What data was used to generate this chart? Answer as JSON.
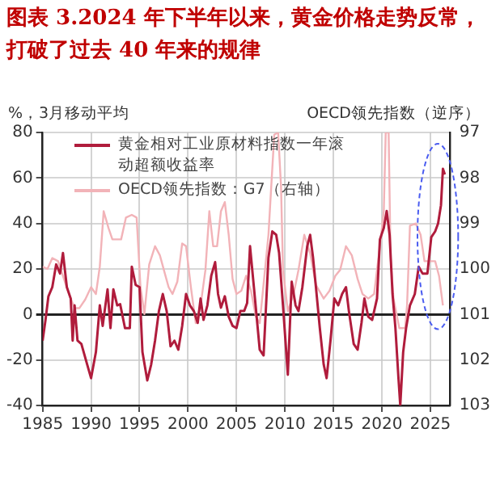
{
  "chart_data": {
    "type": "line",
    "title": "图表 3.2024 年下半年以来，黄金价格走势反常，打破了过去 40 年来的规律",
    "ylabel": "%，3月移动平均",
    "y2label": "OECD领先指数（逆序）",
    "xlim": [
      1985,
      2027
    ],
    "xticks": [
      1985,
      1990,
      1995,
      2000,
      2005,
      2010,
      2015,
      2020,
      2025
    ],
    "ylim": [
      -40,
      80
    ],
    "yticks": [
      -40,
      -20,
      0,
      20,
      40,
      60,
      80
    ],
    "y2lim": [
      103,
      97
    ],
    "y2ticks": [
      97,
      98,
      99,
      100,
      101,
      102,
      103
    ],
    "grid": true,
    "legend": "top left",
    "marker": "none",
    "line_style": "solid",
    "series": [
      {
        "name": "黄金相对工业原材料指数一年滚动超额收益率",
        "color": "#b01c3c",
        "x": [
          1985,
          1985.3,
          1985.6,
          1986,
          1986.4,
          1986.8,
          1987.1,
          1987.5,
          1987.9,
          1988.1,
          1988.3,
          1988.6,
          1989,
          1989.6,
          1990,
          1990.5,
          1990.9,
          1991.2,
          1991.4,
          1991.7,
          1992,
          1992.3,
          1992.7,
          1993,
          1993.5,
          1994,
          1994.2,
          1994.6,
          1995,
          1995.3,
          1995.8,
          1996.2,
          1996.6,
          1997,
          1997.4,
          1997.8,
          1998.2,
          1998.6,
          1999,
          1999.4,
          1999.8,
          2000.2,
          2000.6,
          2001,
          2001.3,
          2001.6,
          2002,
          2002.4,
          2002.8,
          2003.1,
          2003.4,
          2003.8,
          2004.2,
          2004.6,
          2005,
          2005.4,
          2005.8,
          2006.1,
          2006.4,
          2006.8,
          2007.4,
          2007.8,
          2008.3,
          2008.7,
          2009.1,
          2009.4,
          2009.8,
          2010.3,
          2010.7,
          2011.1,
          2011.4,
          2011.8,
          2012.3,
          2012.6,
          2012.9,
          2013.2,
          2013.6,
          2014,
          2014.3,
          2014.7,
          2015.1,
          2015.5,
          2015.9,
          2016.3,
          2016.6,
          2017.1,
          2017.5,
          2017.9,
          2018.2,
          2018.6,
          2019,
          2019.5,
          2019.8,
          2020.2,
          2020.5,
          2020.8,
          2021.1,
          2021.4,
          2021.7,
          2021.9,
          2022.2,
          2022.5,
          2022.9,
          2023.4,
          2023.8,
          2024.2,
          2024.7,
          2025.1,
          2025.5,
          2025.8,
          2026.1,
          2026.3,
          2026.5
        ],
        "values": [
          -11.5,
          -2.4,
          8,
          12,
          22,
          18,
          27,
          12,
          7,
          -11.5,
          4,
          -11.5,
          -13,
          -22,
          -28,
          -16.5,
          4,
          -5,
          1.5,
          11,
          -6,
          11,
          4,
          4.5,
          -6,
          -6,
          21,
          13,
          12,
          -16.5,
          -29,
          -22,
          -11.5,
          1.5,
          9,
          1.5,
          -14,
          -11.5,
          -15.5,
          -5,
          9,
          4,
          1.5,
          -3.7,
          7,
          -2.4,
          4,
          17,
          23,
          9,
          3,
          8,
          -1,
          -5,
          -6,
          1.5,
          1.5,
          5,
          30,
          12,
          -15.5,
          -18,
          25,
          36.5,
          35,
          27,
          4,
          -26.5,
          14.4,
          4,
          1.5,
          12,
          30,
          35,
          25,
          12,
          -6,
          -22,
          -28,
          -11.5,
          7,
          4,
          9,
          12,
          1.5,
          -13,
          -15.5,
          -3.7,
          7,
          -1,
          -2.4,
          7,
          33,
          38,
          45.5,
          35,
          9,
          -6,
          -27,
          -40,
          -16.5,
          -6,
          4,
          9,
          21,
          18,
          18,
          34,
          36.5,
          40,
          48,
          64,
          61.5
        ]
      },
      {
        "name": "OECD领先指数：G7（右轴）",
        "color": "#f2b3b8",
        "axis": "y2",
        "x": [
          1985,
          1985.5,
          1986,
          1986.6,
          1987.2,
          1987.8,
          1988.3,
          1988.8,
          1989.4,
          1990,
          1990.5,
          1990.9,
          1991.3,
          1991.8,
          1992.2,
          1992.7,
          1993.1,
          1993.6,
          1994.2,
          1994.7,
          1995.1,
          1995.5,
          1996,
          1996.6,
          1997.1,
          1997.6,
          1998,
          1998.4,
          1998.9,
          1999.4,
          1999.8,
          2000.3,
          2000.8,
          2001.3,
          2001.8,
          2002.2,
          2002.6,
          2003,
          2003.4,
          2003.8,
          2004.2,
          2004.6,
          2005,
          2005.5,
          2006,
          2006.5,
          2007,
          2007.4,
          2008.3,
          2008.9,
          2009.3,
          2009.6,
          2009.8,
          2010.3,
          2010.9,
          2011.4,
          2012,
          2012.6,
          2013.2,
          2014,
          2014.6,
          2015.2,
          2015.7,
          2016.3,
          2016.9,
          2017.5,
          2018,
          2018.6,
          2019.2,
          2019.8,
          2020.2,
          2020.4,
          2020.7,
          2020.9,
          2021.2,
          2021.8,
          2022.4,
          2022.6,
          2022.9,
          2023.5,
          2024,
          2024.4,
          2025,
          2025.5,
          2025.9,
          2026.3
        ],
        "values": [
          99.95,
          100,
          99.76,
          99.83,
          100.22,
          100.6,
          100.86,
          100.86,
          100.67,
          100.4,
          100.55,
          99.95,
          98.73,
          99.1,
          99.35,
          99.35,
          99.35,
          98.87,
          98.81,
          98.87,
          100.4,
          100.99,
          99.9,
          99.5,
          99.7,
          100.09,
          100.4,
          100.55,
          100.28,
          99.44,
          99.5,
          100.4,
          101.19,
          100.8,
          100.02,
          98.73,
          99.5,
          99.5,
          98.73,
          98.53,
          99.25,
          100.22,
          100.55,
          100.48,
          100.15,
          100.48,
          101.05,
          101.19,
          99.25,
          97.05,
          97,
          98.2,
          100.02,
          100.93,
          100.55,
          100.02,
          99.25,
          99.65,
          100.35,
          100.65,
          100.48,
          100.15,
          100.02,
          99.5,
          99.7,
          100.22,
          100.55,
          100.65,
          100.55,
          99.5,
          98.73,
          97,
          97,
          99.75,
          100.65,
          101.3,
          101.3,
          100.8,
          99.05,
          99,
          99.25,
          99.83,
          99.83,
          99.83,
          100.15,
          100.8
        ]
      }
    ]
  }
}
